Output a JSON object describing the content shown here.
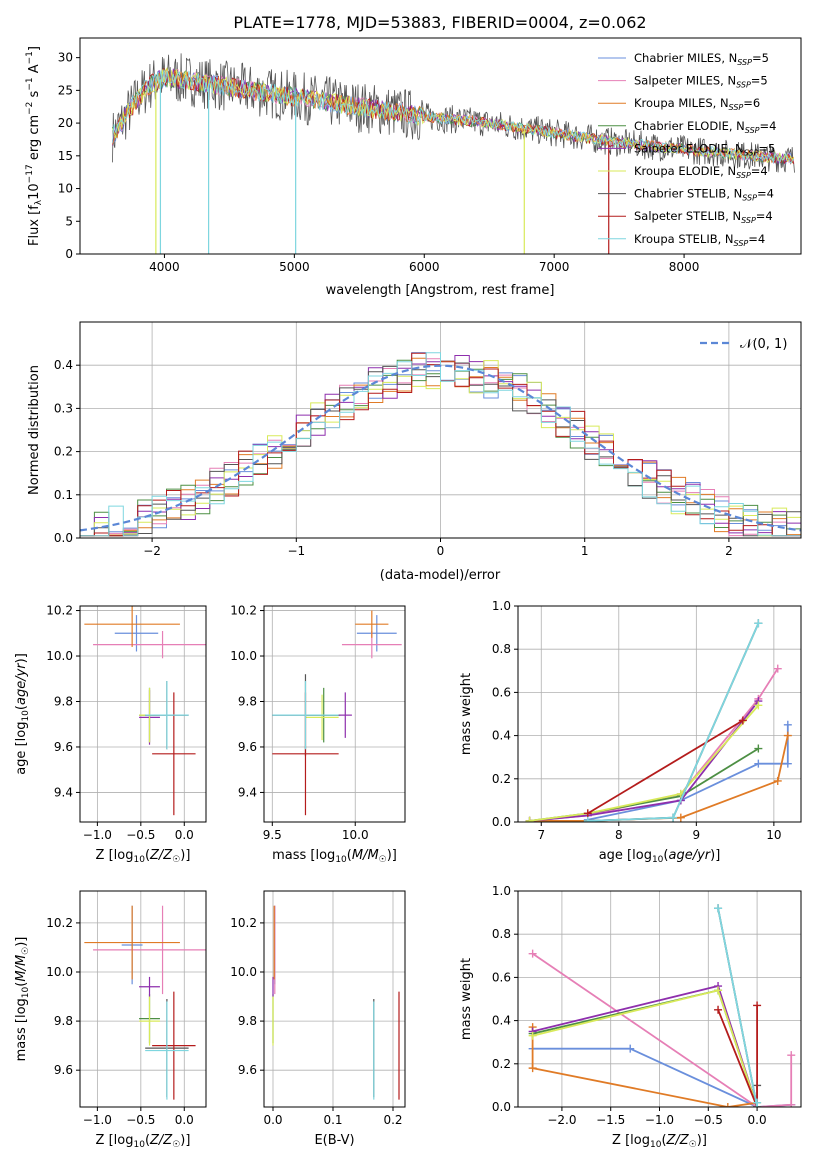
{
  "title": "PLATE=1778, MJD=53883, FIBERID=0004, z=0.062",
  "legend": [
    {
      "label": "Chabrier MILES, N",
      "sub": "SSP",
      "tail": "=5",
      "color": "#6a8fdc"
    },
    {
      "label": "Salpeter MILES, N",
      "sub": "SSP",
      "tail": "=5",
      "color": "#e67fb6"
    },
    {
      "label": "Kroupa MILES, N",
      "sub": "SSP",
      "tail": "=6",
      "color": "#e07b26"
    },
    {
      "label": "Chabrier ELODIE, N",
      "sub": "SSP",
      "tail": "=4",
      "color": "#4d8f44"
    },
    {
      "label": "Salpeter ELODIE, N",
      "sub": "SSP",
      "tail": "=5",
      "color": "#8e2fad"
    },
    {
      "label": "Kroupa ELODIE, N",
      "sub": "SSP",
      "tail": "=4",
      "color": "#d8ea5a"
    },
    {
      "label": "Chabrier STELIB, N",
      "sub": "SSP",
      "tail": "=4",
      "color": "#555555"
    },
    {
      "label": "Salpeter STELIB, N",
      "sub": "SSP",
      "tail": "=4",
      "color": "#b41c1c"
    },
    {
      "label": "Kroupa STELIB, N",
      "sub": "SSP",
      "tail": "=4",
      "color": "#7ed6df"
    }
  ],
  "chart_data": [
    {
      "id": "spectrum",
      "type": "line",
      "title": "PLATE=1778, MJD=53883, FIBERID=0004, z=0.062",
      "xlabel": "wavelength [Angstrom, rest frame]",
      "ylabel": "Flux [f_λ 10^-17 erg cm^-2 s^-1 A^-1]",
      "xlim": [
        3350,
        8900
      ],
      "ylim": [
        0,
        33
      ],
      "xticks": [
        4000,
        5000,
        6000,
        7000,
        8000
      ],
      "yticks": [
        0,
        5,
        10,
        15,
        20,
        25,
        30
      ],
      "continuum": {
        "x": [
          3600,
          3700,
          3800,
          3900,
          4000,
          4200,
          4500,
          5000,
          5500,
          6000,
          6500,
          7000,
          7500,
          8000,
          8500,
          8850
        ],
        "y": [
          18,
          21,
          24,
          26,
          27,
          26.5,
          25.5,
          24,
          22.5,
          21,
          20,
          18.5,
          17,
          16,
          15,
          14.5
        ]
      },
      "absorption_lines": [
        3934,
        3969,
        4340,
        5010,
        6770,
        7420
      ],
      "legend_position": "upper right"
    },
    {
      "id": "residuals",
      "type": "histogram",
      "xlabel": "(data-model)/error",
      "ylabel": "Normed distribution",
      "xlim": [
        -2.5,
        2.5
      ],
      "ylim": [
        0,
        0.5
      ],
      "xticks": [
        -2,
        -1,
        0,
        1,
        2
      ],
      "yticks": [
        0.0,
        0.1,
        0.2,
        0.3,
        0.4
      ],
      "reference_curve": "N(0,1)",
      "legend_label": "𝒩(0, 1)",
      "legend_position": "upper right"
    },
    {
      "id": "age_vs_Z",
      "type": "errorbar",
      "xlabel": "Z [log10(Z/Z☉)]",
      "ylabel": "age [log10(age/yr)]",
      "xlim": [
        -1.2,
        0.25
      ],
      "ylim": [
        9.27,
        10.22
      ],
      "xticks": [
        -1.0,
        -0.5,
        0.0
      ],
      "yticks": [
        9.4,
        9.6,
        9.8,
        10.0,
        10.2
      ],
      "points": [
        {
          "series": "Chabrier MILES",
          "x": -0.55,
          "xerr": 0.25,
          "y": 10.1,
          "yerr": 0.08
        },
        {
          "series": "Salpeter MILES",
          "x": -0.25,
          "xerr": 0.8,
          "y": 10.05,
          "yerr": 0.06
        },
        {
          "series": "Kroupa MILES",
          "x": -0.6,
          "xerr": 0.55,
          "y": 10.14,
          "yerr": 0.1
        },
        {
          "series": "Chabrier ELODIE",
          "x": -0.4,
          "xerr": 0.12,
          "y": 9.74,
          "yerr": 0.12
        },
        {
          "series": "Salpeter ELODIE",
          "x": -0.4,
          "xerr": 0.12,
          "y": 9.73,
          "yerr": 0.12
        },
        {
          "series": "Kroupa ELODIE",
          "x": -0.4,
          "xerr": 0.12,
          "y": 9.74,
          "yerr": 0.12
        },
        {
          "series": "Chabrier STELIB",
          "x": -0.2,
          "xerr": 0.25,
          "y": 9.74,
          "yerr": 0.15
        },
        {
          "series": "Salpeter STELIB",
          "x": -0.12,
          "xerr": 0.25,
          "y": 9.57,
          "yerr": 0.27
        },
        {
          "series": "Kroupa STELIB",
          "x": -0.2,
          "xerr": 0.25,
          "y": 9.74,
          "yerr": 0.15
        }
      ]
    },
    {
      "id": "age_vs_mass",
      "type": "errorbar",
      "xlabel": "mass [log10(M/M☉)]",
      "xlim": [
        9.45,
        10.3
      ],
      "ylim": [
        9.27,
        10.22
      ],
      "xticks": [
        9.5,
        10.0
      ],
      "yticks": [
        9.4,
        9.6,
        9.8,
        10.0,
        10.2
      ],
      "points": [
        {
          "series": "Chabrier MILES",
          "x": 10.13,
          "xerr": 0.12,
          "y": 10.1,
          "yerr": 0.08
        },
        {
          "series": "Salpeter MILES",
          "x": 10.1,
          "xerr": 0.18,
          "y": 10.05,
          "yerr": 0.06
        },
        {
          "series": "Kroupa MILES",
          "x": 10.1,
          "xerr": 0.1,
          "y": 10.14,
          "yerr": 0.06
        },
        {
          "series": "Chabrier ELODIE",
          "x": 9.81,
          "xerr": 0.1,
          "y": 9.74,
          "yerr": 0.12
        },
        {
          "series": "Salpeter ELODIE",
          "x": 9.94,
          "xerr": 0.04,
          "y": 9.74,
          "yerr": 0.1
        },
        {
          "series": "Kroupa ELODIE",
          "x": 9.8,
          "xerr": 0.1,
          "y": 9.73,
          "yerr": 0.1
        },
        {
          "series": "Chabrier STELIB",
          "x": 9.7,
          "xerr": 0.2,
          "y": 9.74,
          "yerr": 0.18
        },
        {
          "series": "Salpeter STELIB",
          "x": 9.7,
          "xerr": 0.2,
          "y": 9.57,
          "yerr": 0.27
        },
        {
          "series": "Kroupa STELIB",
          "x": 9.7,
          "xerr": 0.2,
          "y": 9.74,
          "yerr": 0.15
        }
      ]
    },
    {
      "id": "weight_vs_age",
      "type": "line",
      "xlabel": "age [log10(age/yr)]",
      "ylabel": "mass weight",
      "xlim": [
        6.7,
        10.35
      ],
      "ylim": [
        0,
        1
      ],
      "xticks": [
        7,
        8,
        9,
        10
      ],
      "yticks": [
        0.0,
        0.2,
        0.4,
        0.6,
        0.8,
        1.0
      ],
      "series": [
        {
          "name": "Chabrier MILES",
          "x": [
            10.18,
            10.18,
            9.8,
            8.8,
            7.6
          ],
          "y": [
            0.45,
            0.27,
            0.27,
            0.1,
            0.01
          ]
        },
        {
          "name": "Salpeter MILES",
          "x": [
            10.05,
            9.8,
            8.8,
            7.6,
            6.85
          ],
          "y": [
            0.71,
            0.57,
            0.13,
            0.03,
            0.005
          ]
        },
        {
          "name": "Kroupa MILES",
          "x": [
            10.18,
            10.05,
            8.8,
            7.6,
            6.85
          ],
          "y": [
            0.4,
            0.19,
            0.02,
            0.005,
            0.005
          ]
        },
        {
          "name": "Chabrier ELODIE",
          "x": [
            9.8,
            8.8,
            7.6,
            6.85
          ],
          "y": [
            0.34,
            0.12,
            0.04,
            0.005
          ]
        },
        {
          "name": "Salpeter ELODIE",
          "x": [
            9.8,
            8.8,
            7.6,
            6.85
          ],
          "y": [
            0.56,
            0.1,
            0.03,
            0.005
          ]
        },
        {
          "name": "Kroupa ELODIE",
          "x": [
            9.8,
            8.8,
            7.6,
            6.85
          ],
          "y": [
            0.54,
            0.13,
            0.04,
            0.005
          ]
        },
        {
          "name": "Chabrier STELIB",
          "x": [
            9.8,
            8.7,
            7.6
          ],
          "y": [
            0.92,
            0.02,
            0.005
          ]
        },
        {
          "name": "Salpeter STELIB",
          "x": [
            9.6,
            7.6
          ],
          "y": [
            0.47,
            0.04
          ]
        },
        {
          "name": "Kroupa STELIB",
          "x": [
            9.8,
            8.7,
            7.6
          ],
          "y": [
            0.92,
            0.02,
            0.005
          ]
        }
      ]
    },
    {
      "id": "mass_vs_Z",
      "type": "errorbar",
      "xlabel": "Z [log10(Z/Z☉)]",
      "ylabel": "mass [log10(M/M☉)]",
      "xlim": [
        -1.2,
        0.25
      ],
      "ylim": [
        9.45,
        10.33
      ],
      "xticks": [
        -1.0,
        -0.5,
        0.0
      ],
      "yticks": [
        9.6,
        9.8,
        10.0,
        10.2
      ],
      "points": [
        {
          "series": "Chabrier MILES",
          "x": -0.6,
          "xerr": 0.12,
          "y": 10.11,
          "yerr": 0.16
        },
        {
          "series": "Salpeter MILES",
          "x": -0.25,
          "xerr": 0.8,
          "y": 10.09,
          "yerr": 0.18
        },
        {
          "series": "Kroupa MILES",
          "x": -0.6,
          "xerr": 0.55,
          "y": 10.12,
          "yerr": 0.15
        },
        {
          "series": "Chabrier ELODIE",
          "x": -0.4,
          "xerr": 0.12,
          "y": 9.81,
          "yerr": 0.1
        },
        {
          "series": "Salpeter ELODIE",
          "x": -0.4,
          "xerr": 0.12,
          "y": 9.94,
          "yerr": 0.04
        },
        {
          "series": "Kroupa ELODIE",
          "x": -0.4,
          "xerr": 0.12,
          "y": 9.8,
          "yerr": 0.1
        },
        {
          "series": "Chabrier STELIB",
          "x": -0.2,
          "xerr": 0.25,
          "y": 9.69,
          "yerr": 0.2
        },
        {
          "series": "Salpeter STELIB",
          "x": -0.12,
          "xerr": 0.25,
          "y": 9.7,
          "yerr": 0.22
        },
        {
          "series": "Kroupa STELIB",
          "x": -0.2,
          "xerr": 0.25,
          "y": 9.68,
          "yerr": 0.2
        }
      ]
    },
    {
      "id": "mass_vs_EBV",
      "type": "errorbar",
      "xlabel": "E(B-V)",
      "xlim": [
        -0.015,
        0.22
      ],
      "ylim": [
        9.45,
        10.33
      ],
      "xticks": [
        0.0,
        0.1,
        0.2
      ],
      "yticks": [
        9.6,
        9.8,
        10.0,
        10.2
      ],
      "points": [
        {
          "series": "Chabrier MILES",
          "x": 0.003,
          "y": 10.11,
          "yerr": 0.16
        },
        {
          "series": "Salpeter MILES",
          "x": 0.003,
          "y": 10.09,
          "yerr": 0.18
        },
        {
          "series": "Kroupa MILES",
          "x": 0.002,
          "y": 10.12,
          "yerr": 0.15
        },
        {
          "series": "Chabrier ELODIE",
          "x": 0.0,
          "y": 9.81,
          "yerr": 0.1
        },
        {
          "series": "Salpeter ELODIE",
          "x": 0.0,
          "y": 9.94,
          "yerr": 0.04
        },
        {
          "series": "Kroupa ELODIE",
          "x": 0.0,
          "y": 9.8,
          "yerr": 0.1
        },
        {
          "series": "Chabrier STELIB",
          "x": 0.168,
          "y": 9.69,
          "yerr": 0.2
        },
        {
          "series": "Salpeter STELIB",
          "x": 0.21,
          "y": 9.7,
          "yerr": 0.22
        },
        {
          "series": "Kroupa STELIB",
          "x": 0.168,
          "y": 9.68,
          "yerr": 0.2
        }
      ]
    },
    {
      "id": "weight_vs_Z",
      "type": "line",
      "xlabel": "Z [log10(Z/Z☉)]",
      "ylabel": "mass weight",
      "xlim": [
        -2.45,
        0.45
      ],
      "ylim": [
        0,
        1
      ],
      "xticks": [
        -2.0,
        -1.5,
        -1.0,
        -0.5,
        0.0
      ],
      "yticks": [
        0.0,
        0.2,
        0.4,
        0.6,
        0.8,
        1.0
      ],
      "series": [
        {
          "name": "Chabrier MILES",
          "x": [
            -2.3,
            -1.3,
            0.0,
            0.35
          ],
          "y": [
            0.27,
            0.27,
            0.0,
            0.01
          ]
        },
        {
          "name": "Salpeter MILES",
          "x": [
            -2.3,
            0.0,
            0.35,
            0.35
          ],
          "y": [
            0.71,
            0.0,
            0.01,
            0.24
          ]
        },
        {
          "name": "Kroupa MILES",
          "x": [
            -2.3,
            -2.3,
            -0.3,
            0.0
          ],
          "y": [
            0.37,
            0.18,
            0.0,
            0.02
          ]
        },
        {
          "name": "Chabrier ELODIE",
          "x": [
            -2.3,
            -0.4,
            0.0
          ],
          "y": [
            0.34,
            0.54,
            0.0
          ]
        },
        {
          "name": "Salpeter ELODIE",
          "x": [
            -2.3,
            -0.4,
            0.0
          ],
          "y": [
            0.35,
            0.56,
            0.0
          ]
        },
        {
          "name": "Kroupa ELODIE",
          "x": [
            -2.3,
            -0.4,
            0.0
          ],
          "y": [
            0.33,
            0.54,
            0.0
          ]
        },
        {
          "name": "Chabrier STELIB",
          "x": [
            -0.4,
            0.0,
            0.0
          ],
          "y": [
            0.92,
            0.0,
            0.1
          ]
        },
        {
          "name": "Salpeter STELIB",
          "x": [
            -0.4,
            0.0,
            0.0
          ],
          "y": [
            0.45,
            0.0,
            0.47
          ]
        },
        {
          "name": "Kroupa STELIB",
          "x": [
            -0.4,
            0.0,
            0.0
          ],
          "y": [
            0.92,
            0.0,
            0.02
          ]
        }
      ]
    }
  ]
}
